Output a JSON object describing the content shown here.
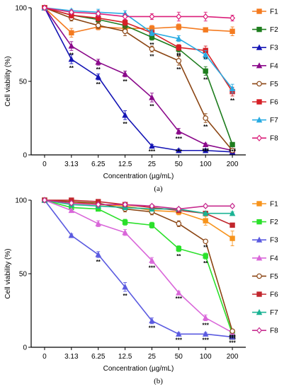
{
  "chart_data": [
    {
      "type": "line",
      "panel_label": "(a)",
      "categories": [
        "0",
        "3.13",
        "6.25",
        "12.5",
        "25",
        "50",
        "100",
        "200"
      ],
      "xlabel": "Concentration (µg/mL)",
      "ylabel": "Cell viability (%)",
      "ylim": [
        0,
        100
      ],
      "yticks": [
        "0",
        "50",
        "100"
      ],
      "legend": "right",
      "grid": false,
      "series": [
        {
          "name": "F1",
          "color": "#F47B20",
          "marker": "square",
          "values": [
            100,
            83,
            87,
            86,
            86,
            87,
            85,
            84
          ],
          "errors": [
            1,
            3,
            2,
            2,
            2,
            2,
            1,
            3
          ],
          "sig": [
            "",
            "",
            "",
            "",
            "",
            "",
            "",
            ""
          ]
        },
        {
          "name": "F2",
          "color": "#1E7D1E",
          "marker": "square",
          "values": [
            100,
            95,
            92,
            88,
            80,
            72,
            57,
            7
          ],
          "errors": [
            1,
            2,
            2,
            2,
            2,
            2,
            3,
            1
          ],
          "sig": [
            "",
            "",
            "",
            "",
            "**",
            "**",
            "**",
            "***"
          ]
        },
        {
          "name": "F3",
          "color": "#1515B5",
          "marker": "triangle",
          "values": [
            100,
            65,
            53,
            27,
            6,
            3,
            3,
            2
          ],
          "errors": [
            1,
            3,
            2,
            3,
            1,
            1,
            1,
            1
          ],
          "sig": [
            "",
            "**",
            "**",
            "**",
            "***",
            "***",
            "***",
            "***"
          ]
        },
        {
          "name": "F4",
          "color": "#8B0A8B",
          "marker": "triangle",
          "values": [
            100,
            74,
            63,
            55,
            39,
            16,
            7,
            3
          ],
          "errors": [
            1,
            3,
            2,
            2,
            3,
            2,
            1,
            1
          ],
          "sig": [
            "",
            "**",
            "**",
            "**",
            "**",
            "***",
            "***",
            "***"
          ]
        },
        {
          "name": "F5",
          "color": "#8B4513",
          "marker": "circle",
          "values": [
            100,
            93,
            88,
            84,
            72,
            64,
            25,
            3
          ],
          "errors": [
            1,
            2,
            2,
            3,
            2,
            3,
            3,
            1
          ],
          "sig": [
            "",
            "",
            "",
            "",
            "**",
            "**",
            "**",
            "***"
          ]
        },
        {
          "name": "F6",
          "color": "#D62027",
          "marker": "square",
          "values": [
            100,
            95,
            93,
            90,
            83,
            73,
            71,
            43
          ],
          "errors": [
            1,
            2,
            2,
            2,
            2,
            2,
            3,
            3
          ],
          "sig": [
            "",
            "",
            "",
            "",
            "",
            "**",
            "**",
            "**"
          ]
        },
        {
          "name": "F7",
          "color": "#29ABE2",
          "marker": "triangle",
          "values": [
            100,
            98,
            97,
            96,
            83,
            79,
            68,
            45
          ],
          "errors": [
            1,
            1,
            2,
            2,
            2,
            2,
            3,
            3
          ],
          "sig": [
            "",
            "",
            "",
            "",
            "",
            "",
            "",
            ""
          ]
        },
        {
          "name": "F8",
          "color": "#DB1F7A",
          "marker": "diamond",
          "values": [
            100,
            97,
            96,
            94,
            94,
            94,
            94,
            93
          ],
          "errors": [
            1,
            1,
            2,
            2,
            2,
            3,
            3,
            2
          ],
          "sig": [
            "",
            "",
            "",
            "",
            "",
            "",
            "",
            ""
          ]
        }
      ]
    },
    {
      "type": "line",
      "panel_label": "(b)",
      "categories": [
        "0",
        "3.13",
        "6.25",
        "12.5",
        "25",
        "50",
        "100",
        "200"
      ],
      "xlabel": "Concentration (µg/mL)",
      "ylabel": "Cell viability (%)",
      "ylim": [
        0,
        100
      ],
      "yticks": [
        "0",
        "50",
        "100"
      ],
      "legend": "right",
      "grid": false,
      "series": [
        {
          "name": "F1",
          "color": "#F7941D",
          "marker": "square",
          "values": [
            100,
            99,
            97,
            96,
            93,
            92,
            86,
            74
          ],
          "errors": [
            1,
            1,
            1,
            2,
            2,
            2,
            3,
            5
          ],
          "sig": [
            "",
            "",
            "",
            "",
            "",
            "",
            "",
            ""
          ]
        },
        {
          "name": "F2",
          "color": "#2BE02B",
          "marker": "square",
          "values": [
            100,
            95,
            94,
            85,
            83,
            67,
            62,
            9
          ],
          "errors": [
            1,
            1,
            1,
            2,
            2,
            2,
            2,
            1
          ],
          "sig": [
            "",
            "",
            "",
            "",
            "",
            "**",
            "**",
            "***"
          ]
        },
        {
          "name": "F3",
          "color": "#5B5BE0",
          "marker": "triangle",
          "values": [
            100,
            76,
            63,
            41,
            18,
            9,
            9,
            7
          ],
          "errors": [
            1,
            1,
            2,
            3,
            2,
            1,
            1,
            1
          ],
          "sig": [
            "",
            "",
            "**",
            "**",
            "***",
            "***",
            "***",
            "***"
          ]
        },
        {
          "name": "F4",
          "color": "#D966D9",
          "marker": "triangle",
          "values": [
            100,
            93,
            84,
            78,
            59,
            37,
            20,
            10
          ],
          "errors": [
            1,
            1,
            2,
            2,
            2,
            1,
            2,
            1
          ],
          "sig": [
            "",
            "",
            "",
            "",
            "***",
            "***",
            "***",
            "***"
          ]
        },
        {
          "name": "F5",
          "color": "#8B4513",
          "marker": "circle",
          "values": [
            100,
            99,
            98,
            94,
            92,
            84,
            72,
            11
          ],
          "errors": [
            1,
            1,
            1,
            2,
            2,
            2,
            1,
            1
          ],
          "sig": [
            "",
            "",
            "",
            "",
            "",
            "",
            "**",
            "***"
          ]
        },
        {
          "name": "F6",
          "color": "#C1272D",
          "marker": "square",
          "values": [
            100,
            100,
            99,
            97,
            95,
            93,
            91,
            83
          ],
          "errors": [
            1,
            1,
            1,
            1,
            1,
            1,
            1,
            1
          ],
          "sig": [
            "",
            "",
            "",
            "",
            "",
            "",
            "",
            ""
          ]
        },
        {
          "name": "F7",
          "color": "#1BB394",
          "marker": "triangle",
          "values": [
            100,
            97,
            96,
            95,
            94,
            94,
            91,
            91
          ],
          "errors": [
            1,
            1,
            1,
            1,
            1,
            1,
            1,
            1
          ],
          "sig": [
            "",
            "",
            "",
            "",
            "",
            "",
            "",
            ""
          ]
        },
        {
          "name": "F8",
          "color": "#C72C8F",
          "marker": "diamond",
          "values": [
            100,
            98,
            97,
            97,
            96,
            94,
            96,
            96
          ],
          "errors": [
            1,
            1,
            1,
            1,
            1,
            1,
            1,
            1
          ],
          "sig": [
            "",
            "",
            "",
            "",
            "",
            "",
            "",
            ""
          ]
        }
      ]
    }
  ]
}
